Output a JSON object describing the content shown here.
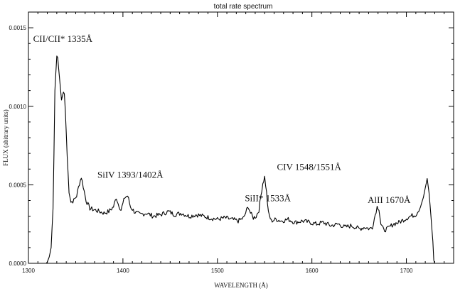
{
  "chart_data": {
    "type": "line",
    "title": "total rate spectrum",
    "xlabel": "WAVELENGTH (Å)",
    "ylabel": "FLUX (abitrary units)",
    "xlim": [
      1300,
      1750
    ],
    "ylim": [
      0,
      0.0016
    ],
    "x_ticks": [
      {
        "value": 1300,
        "label": "1300"
      },
      {
        "value": 1400,
        "label": "1400"
      },
      {
        "value": 1500,
        "label": "1500"
      },
      {
        "value": 1600,
        "label": "1600"
      },
      {
        "value": 1700,
        "label": "1700"
      }
    ],
    "y_ticks": [
      {
        "value": 0,
        "label": "0.0000"
      },
      {
        "value": 0.0005,
        "label": "0.0005"
      },
      {
        "value": 0.001,
        "label": "0.0010"
      },
      {
        "value": 0.0015,
        "label": "0.0015"
      }
    ],
    "annotations": [
      {
        "text": "CII/CII* 1335Å",
        "x": 1305,
        "y": 0.00141
      },
      {
        "text": "SiIV 1393/1402Å",
        "x": 1373,
        "y": 0.000545
      },
      {
        "text": "SiII* 1533Å",
        "x": 1529,
        "y": 0.000395
      },
      {
        "text": "CIV 1548/1551Å",
        "x": 1563,
        "y": 0.000595
      },
      {
        "text": "AlII 1670Å",
        "x": 1659,
        "y": 0.000385
      }
    ],
    "series": [
      {
        "points": [
          [
            1319,
            0
          ],
          [
            1320,
            1e-05
          ],
          [
            1322,
            4e-05
          ],
          [
            1324,
            0.0001
          ],
          [
            1326,
            0.00035
          ],
          [
            1327,
            0.0007
          ],
          [
            1328,
            0.0011
          ],
          [
            1330,
            0.00132
          ],
          [
            1331,
            0.00131
          ],
          [
            1333,
            0.00117
          ],
          [
            1335,
            0.00104
          ],
          [
            1337,
            0.00109
          ],
          [
            1338,
            0.00108
          ],
          [
            1339,
            0.00098
          ],
          [
            1341,
            0.00068
          ],
          [
            1343,
            0.00046
          ],
          [
            1345,
            0.00039
          ],
          [
            1348,
            0.0004
          ],
          [
            1351,
            0.00043
          ],
          [
            1354,
            0.00051
          ],
          [
            1356,
            0.00055
          ],
          [
            1358,
            0.00049
          ],
          [
            1361,
            0.0004
          ],
          [
            1365,
            0.00035
          ],
          [
            1370,
            0.00034
          ],
          [
            1375,
            0.00033
          ],
          [
            1380,
            0.00032
          ],
          [
            1385,
            0.00033
          ],
          [
            1390,
            0.00036
          ],
          [
            1393,
            0.00042
          ],
          [
            1395,
            0.00038
          ],
          [
            1398,
            0.00034
          ],
          [
            1402,
            0.00042
          ],
          [
            1405,
            0.00043
          ],
          [
            1408,
            0.00036
          ],
          [
            1412,
            0.00033
          ],
          [
            1418,
            0.00031
          ],
          [
            1425,
            0.00032
          ],
          [
            1432,
            0.0003
          ],
          [
            1440,
            0.00031
          ],
          [
            1448,
            0.00033
          ],
          [
            1455,
            0.00031
          ],
          [
            1462,
            0.00032
          ],
          [
            1470,
            0.0003
          ],
          [
            1478,
            0.00031
          ],
          [
            1485,
            0.0003
          ],
          [
            1492,
            0.00029
          ],
          [
            1500,
            0.00028
          ],
          [
            1508,
            0.00029
          ],
          [
            1515,
            0.00028
          ],
          [
            1522,
            0.00027
          ],
          [
            1528,
            0.00029
          ],
          [
            1531,
            0.00034
          ],
          [
            1533,
            0.00036
          ],
          [
            1535,
            0.00032
          ],
          [
            1538,
            0.00029
          ],
          [
            1541,
            0.0003
          ],
          [
            1544,
            0.00034
          ],
          [
            1546,
            0.00043
          ],
          [
            1548,
            0.00051
          ],
          [
            1550,
            0.00055
          ],
          [
            1552,
            0.00045
          ],
          [
            1554,
            0.00032
          ],
          [
            1557,
            0.00027
          ],
          [
            1562,
            0.00028
          ],
          [
            1568,
            0.00027
          ],
          [
            1575,
            0.00028
          ],
          [
            1582,
            0.00026
          ],
          [
            1590,
            0.00027
          ],
          [
            1598,
            0.00026
          ],
          [
            1605,
            0.00025
          ],
          [
            1612,
            0.00026
          ],
          [
            1620,
            0.00024
          ],
          [
            1628,
            0.00025
          ],
          [
            1635,
            0.00023
          ],
          [
            1642,
            0.00024
          ],
          [
            1650,
            0.00022
          ],
          [
            1656,
            0.00023
          ],
          [
            1661,
            0.00022
          ],
          [
            1664,
            0.00023
          ],
          [
            1667,
            0.00031
          ],
          [
            1669,
            0.00036
          ],
          [
            1671,
            0.00035
          ],
          [
            1673,
            0.00025
          ],
          [
            1676,
            0.00021
          ],
          [
            1680,
            0.00022
          ],
          [
            1686,
            0.00025
          ],
          [
            1692,
            0.00026
          ],
          [
            1698,
            0.00028
          ],
          [
            1704,
            0.0003
          ],
          [
            1710,
            0.00031
          ],
          [
            1715,
            0.00036
          ],
          [
            1718,
            0.00042
          ],
          [
            1721,
            0.00051
          ],
          [
            1722,
            0.00054
          ],
          [
            1724,
            0.00045
          ],
          [
            1726,
            0.0003
          ],
          [
            1728,
            0.00014
          ],
          [
            1729,
            2e-05
          ],
          [
            1730,
            0
          ]
        ]
      }
    ]
  }
}
